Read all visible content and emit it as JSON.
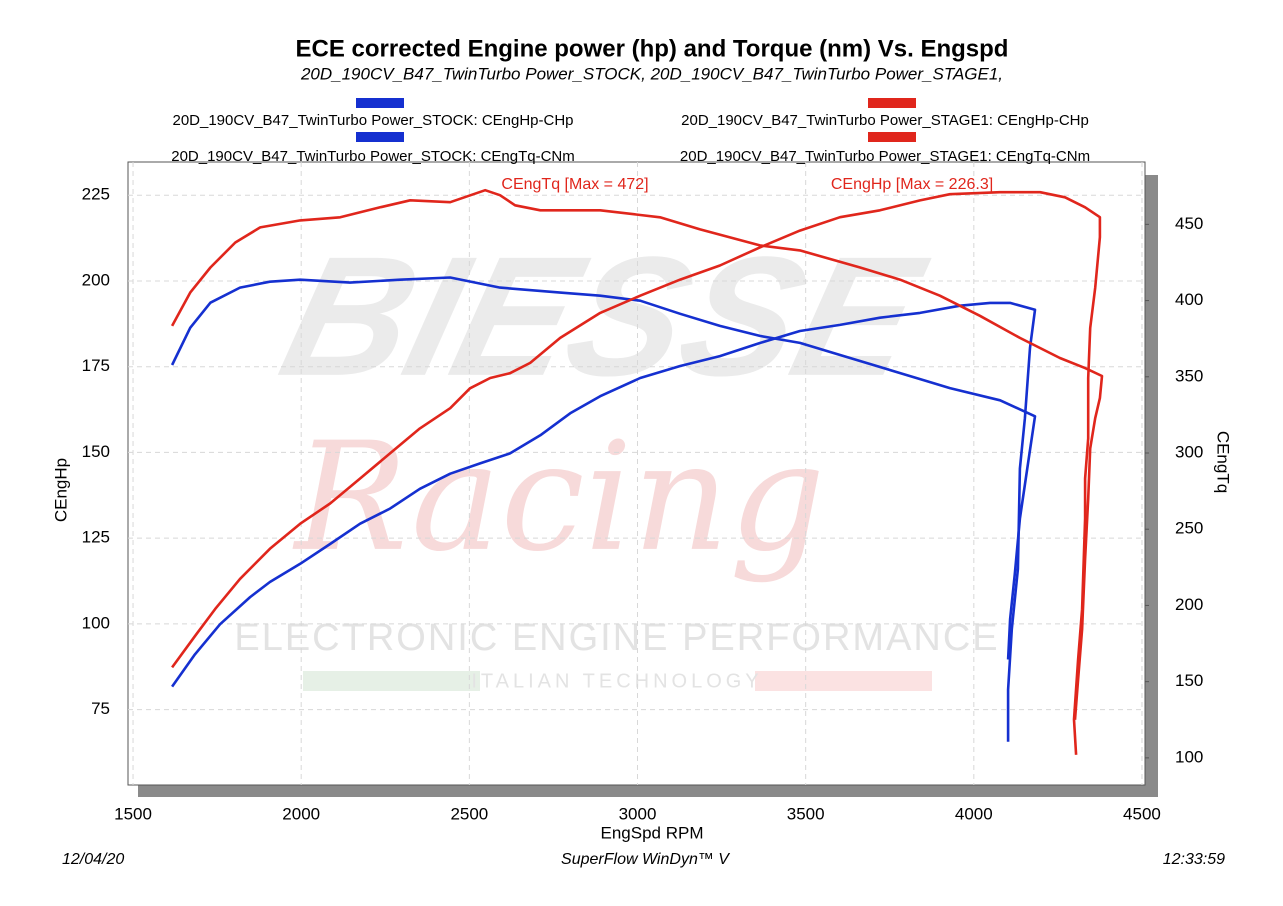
{
  "chart_data": {
    "type": "line",
    "title": "ECE corrected Engine power (hp) and Torque (nm) Vs. Engspd",
    "subtitle": "20D_190CV_B47_TwinTurbo Power_STOCK, 20D_190CV_B47_TwinTurbo Power_STAGE1,",
    "x_label": "EngSpd RPM",
    "y_label": "CEngHp",
    "y2_label": "CEngTq",
    "xlim": [
      1485,
      4509
    ],
    "ylim": [
      53,
      234.7
    ],
    "y2lim": [
      82.2,
      490.9
    ],
    "xticks": [
      1500,
      2000,
      2500,
      3000,
      3500,
      4000,
      4500
    ],
    "yticks": [
      75,
      100,
      125,
      150,
      175,
      200,
      225
    ],
    "y2ticks": [
      100,
      150,
      200,
      250,
      300,
      350,
      400,
      450
    ],
    "grid": true,
    "annotations": [
      {
        "text": "CEngTq [Max = 472]",
        "color": "#e0261c"
      },
      {
        "text": "CEngHp [Max = 226.3]",
        "color": "#e0261c"
      }
    ],
    "watermark": {
      "brand": "BIESSE",
      "script": "Racing",
      "tagline": "ELECTRONIC ENGINE PERFORMANCE",
      "subline": "ITALIAN TECHNOLOGY"
    },
    "footer": {
      "date": "12/04/20",
      "software": "SuperFlow WinDyn™ V",
      "time": "12:33:59"
    },
    "series": [
      {
        "name": "20D_190CV_B47_TwinTurbo Power_STOCK: CEngHp-CHp",
        "color": "#1530d0",
        "axis": "y",
        "x": [
          1616,
          1684,
          1759,
          1848,
          1907,
          1997,
          2086,
          2175,
          2264,
          2353,
          2443,
          2532,
          2621,
          2711,
          2800,
          2889,
          3008,
          3127,
          3245,
          3364,
          3483,
          3602,
          3721,
          3840,
          3959,
          4048,
          4108,
          4182,
          4167,
          4152,
          4137,
          4131,
          4113,
          4102,
          4102
        ],
        "values": [
          81.7,
          91.1,
          99.9,
          107.8,
          112.2,
          117.5,
          123.3,
          129.2,
          133.6,
          139.4,
          143.8,
          146.8,
          149.7,
          155.0,
          161.4,
          166.4,
          171.7,
          175.2,
          178.1,
          181.9,
          185.4,
          187.2,
          189.3,
          190.7,
          192.8,
          193.6,
          193.6,
          191.6,
          180.5,
          160.0,
          145.3,
          116.0,
          98.4,
          80.8,
          65.6
        ]
      },
      {
        "name": "20D_190CV_B47_TwinTurbo Power_STOCK: CEngTq-CNm",
        "color": "#1530d0",
        "axis": "y2",
        "x": [
          1616,
          1670,
          1730,
          1818,
          1907,
          1997,
          2145,
          2294,
          2443,
          2591,
          2770,
          2889,
          3008,
          3127,
          3245,
          3364,
          3483,
          3632,
          3781,
          3929,
          4078,
          4182,
          4161,
          4137,
          4122,
          4108,
          4102
        ],
        "values": [
          357.7,
          382.1,
          398.6,
          408.5,
          412.4,
          413.7,
          411.8,
          413.7,
          415.1,
          408.5,
          405.2,
          403.2,
          399.9,
          391.3,
          383.4,
          376.8,
          372.2,
          362.3,
          352.4,
          342.6,
          334.6,
          324.1,
          293.1,
          256.9,
          220.6,
          190.9,
          164.5
        ]
      },
      {
        "name": "20D_190CV_B47_TwinTurbo Power_STAGE1: CEngHp-CHp",
        "color": "#e0261c",
        "axis": "y",
        "x": [
          1616,
          1684,
          1744,
          1818,
          1907,
          1997,
          2086,
          2175,
          2264,
          2353,
          2443,
          2502,
          2562,
          2621,
          2681,
          2770,
          2889,
          3008,
          3127,
          3245,
          3364,
          3483,
          3602,
          3721,
          3840,
          3929,
          4078,
          4197,
          4271,
          4331,
          4375,
          4375,
          4361,
          4346,
          4340,
          4340,
          4331,
          4331,
          4322,
          4310,
          4298,
          4304
        ],
        "values": [
          87.3,
          96.4,
          104.3,
          113.1,
          121.9,
          129.2,
          135.1,
          142.4,
          149.7,
          157.0,
          162.9,
          168.7,
          171.7,
          173.1,
          176.1,
          183.4,
          190.7,
          195.7,
          200.4,
          204.5,
          209.8,
          214.7,
          218.6,
          220.6,
          223.5,
          225.3,
          225.9,
          225.9,
          224.4,
          221.5,
          218.6,
          212.8,
          198.0,
          186.3,
          171.7,
          154.1,
          142.4,
          130.7,
          104.3,
          89.6,
          72.1,
          61.8
        ]
      },
      {
        "name": "20D_190CV_B47_TwinTurbo Power_STAGE1: CEngTq-CNm",
        "color": "#e0261c",
        "axis": "y2",
        "x": [
          1616,
          1670,
          1730,
          1804,
          1878,
          1997,
          2116,
          2235,
          2324,
          2443,
          2547,
          2591,
          2636,
          2711,
          2889,
          3067,
          3186,
          3364,
          3483,
          3662,
          3781,
          3899,
          4018,
          4137,
          4256,
          4331,
          4381,
          4375,
          4361,
          4346,
          4340,
          4331,
          4322,
          4310,
          4301
        ],
        "values": [
          383.4,
          405.2,
          421.7,
          438.1,
          448.0,
          452.6,
          454.6,
          461.2,
          465.8,
          464.5,
          472.4,
          469.1,
          462.5,
          459.2,
          459.2,
          454.6,
          446.7,
          436.2,
          432.9,
          421.7,
          413.7,
          403.2,
          390.0,
          375.5,
          362.3,
          355.7,
          350.5,
          336.0,
          322.8,
          303.0,
          270.0,
          230.5,
          184.3,
          151.4,
          125.0
        ]
      }
    ]
  }
}
